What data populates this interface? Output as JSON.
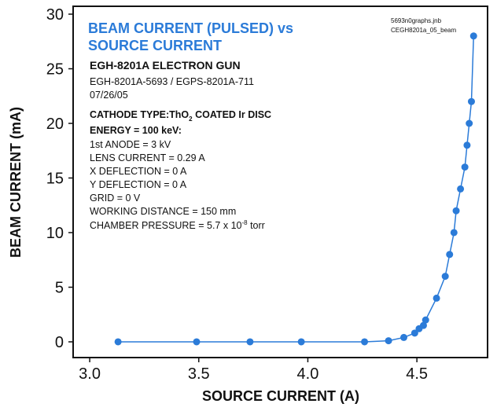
{
  "chart_data": {
    "type": "line",
    "title": [
      "BEAM CURRENT (PULSED) vs",
      "SOURCE CURRENT"
    ],
    "file_notes": [
      "5693n0graphs.jnb",
      "CEGH8201a_05_beam"
    ],
    "notes": [
      {
        "text": "EGH-8201A ELECTRON GUN",
        "bold": true
      },
      {
        "text": "EGH-8201A-5693 / EGPS-8201A-711"
      },
      {
        "text": "07/26/05"
      },
      {
        "text": "CATHODE TYPE:ThO",
        "sub": "2",
        "after": " COATED Ir DISC",
        "bold": true
      },
      {
        "text": "ENERGY = 100 keV:",
        "bold": true
      },
      {
        "text": "1st ANODE = 3 kV"
      },
      {
        "text": "LENS CURRENT = 0.29 A"
      },
      {
        "text": "X DEFLECTION = 0 A"
      },
      {
        "text": "Y DEFLECTION =  0 A"
      },
      {
        "text": "GRID = 0 V"
      },
      {
        "text": "WORKING DISTANCE = 150 mm"
      },
      {
        "text": "CHAMBER PRESSURE =  5.7 x 10",
        "sup": "-8",
        "after": " torr"
      }
    ],
    "x_label": "SOURCE CURRENT (A)",
    "y_label": "BEAM CURRENT (mA)",
    "x": [
      3.13,
      3.49,
      3.735,
      3.97,
      4.26,
      4.37,
      4.44,
      4.49,
      4.51,
      4.53,
      4.54,
      4.59,
      4.63,
      4.65,
      4.67,
      4.68,
      4.7,
      4.72,
      4.73,
      4.74,
      4.75,
      4.76
    ],
    "series": [
      {
        "name": "beam current",
        "color": "#2b7bd8",
        "values": [
          0,
          0,
          0,
          0,
          0,
          0.1,
          0.4,
          0.8,
          1.2,
          1.5,
          2.0,
          4,
          6,
          8,
          10,
          12,
          14,
          16,
          18,
          20,
          22,
          28
        ]
      }
    ],
    "xlim": [
      2.924,
      4.824
    ],
    "ylim": [
      -1.44,
      30.72
    ],
    "xticks": [
      {
        "value": 3,
        "label": "3.0"
      },
      3.5,
      {
        "value": 4,
        "label": "4.0"
      },
      4.5
    ],
    "yticks": [
      0,
      5,
      10,
      15,
      20,
      25,
      30
    ],
    "title_color": "#2b7bd8"
  }
}
